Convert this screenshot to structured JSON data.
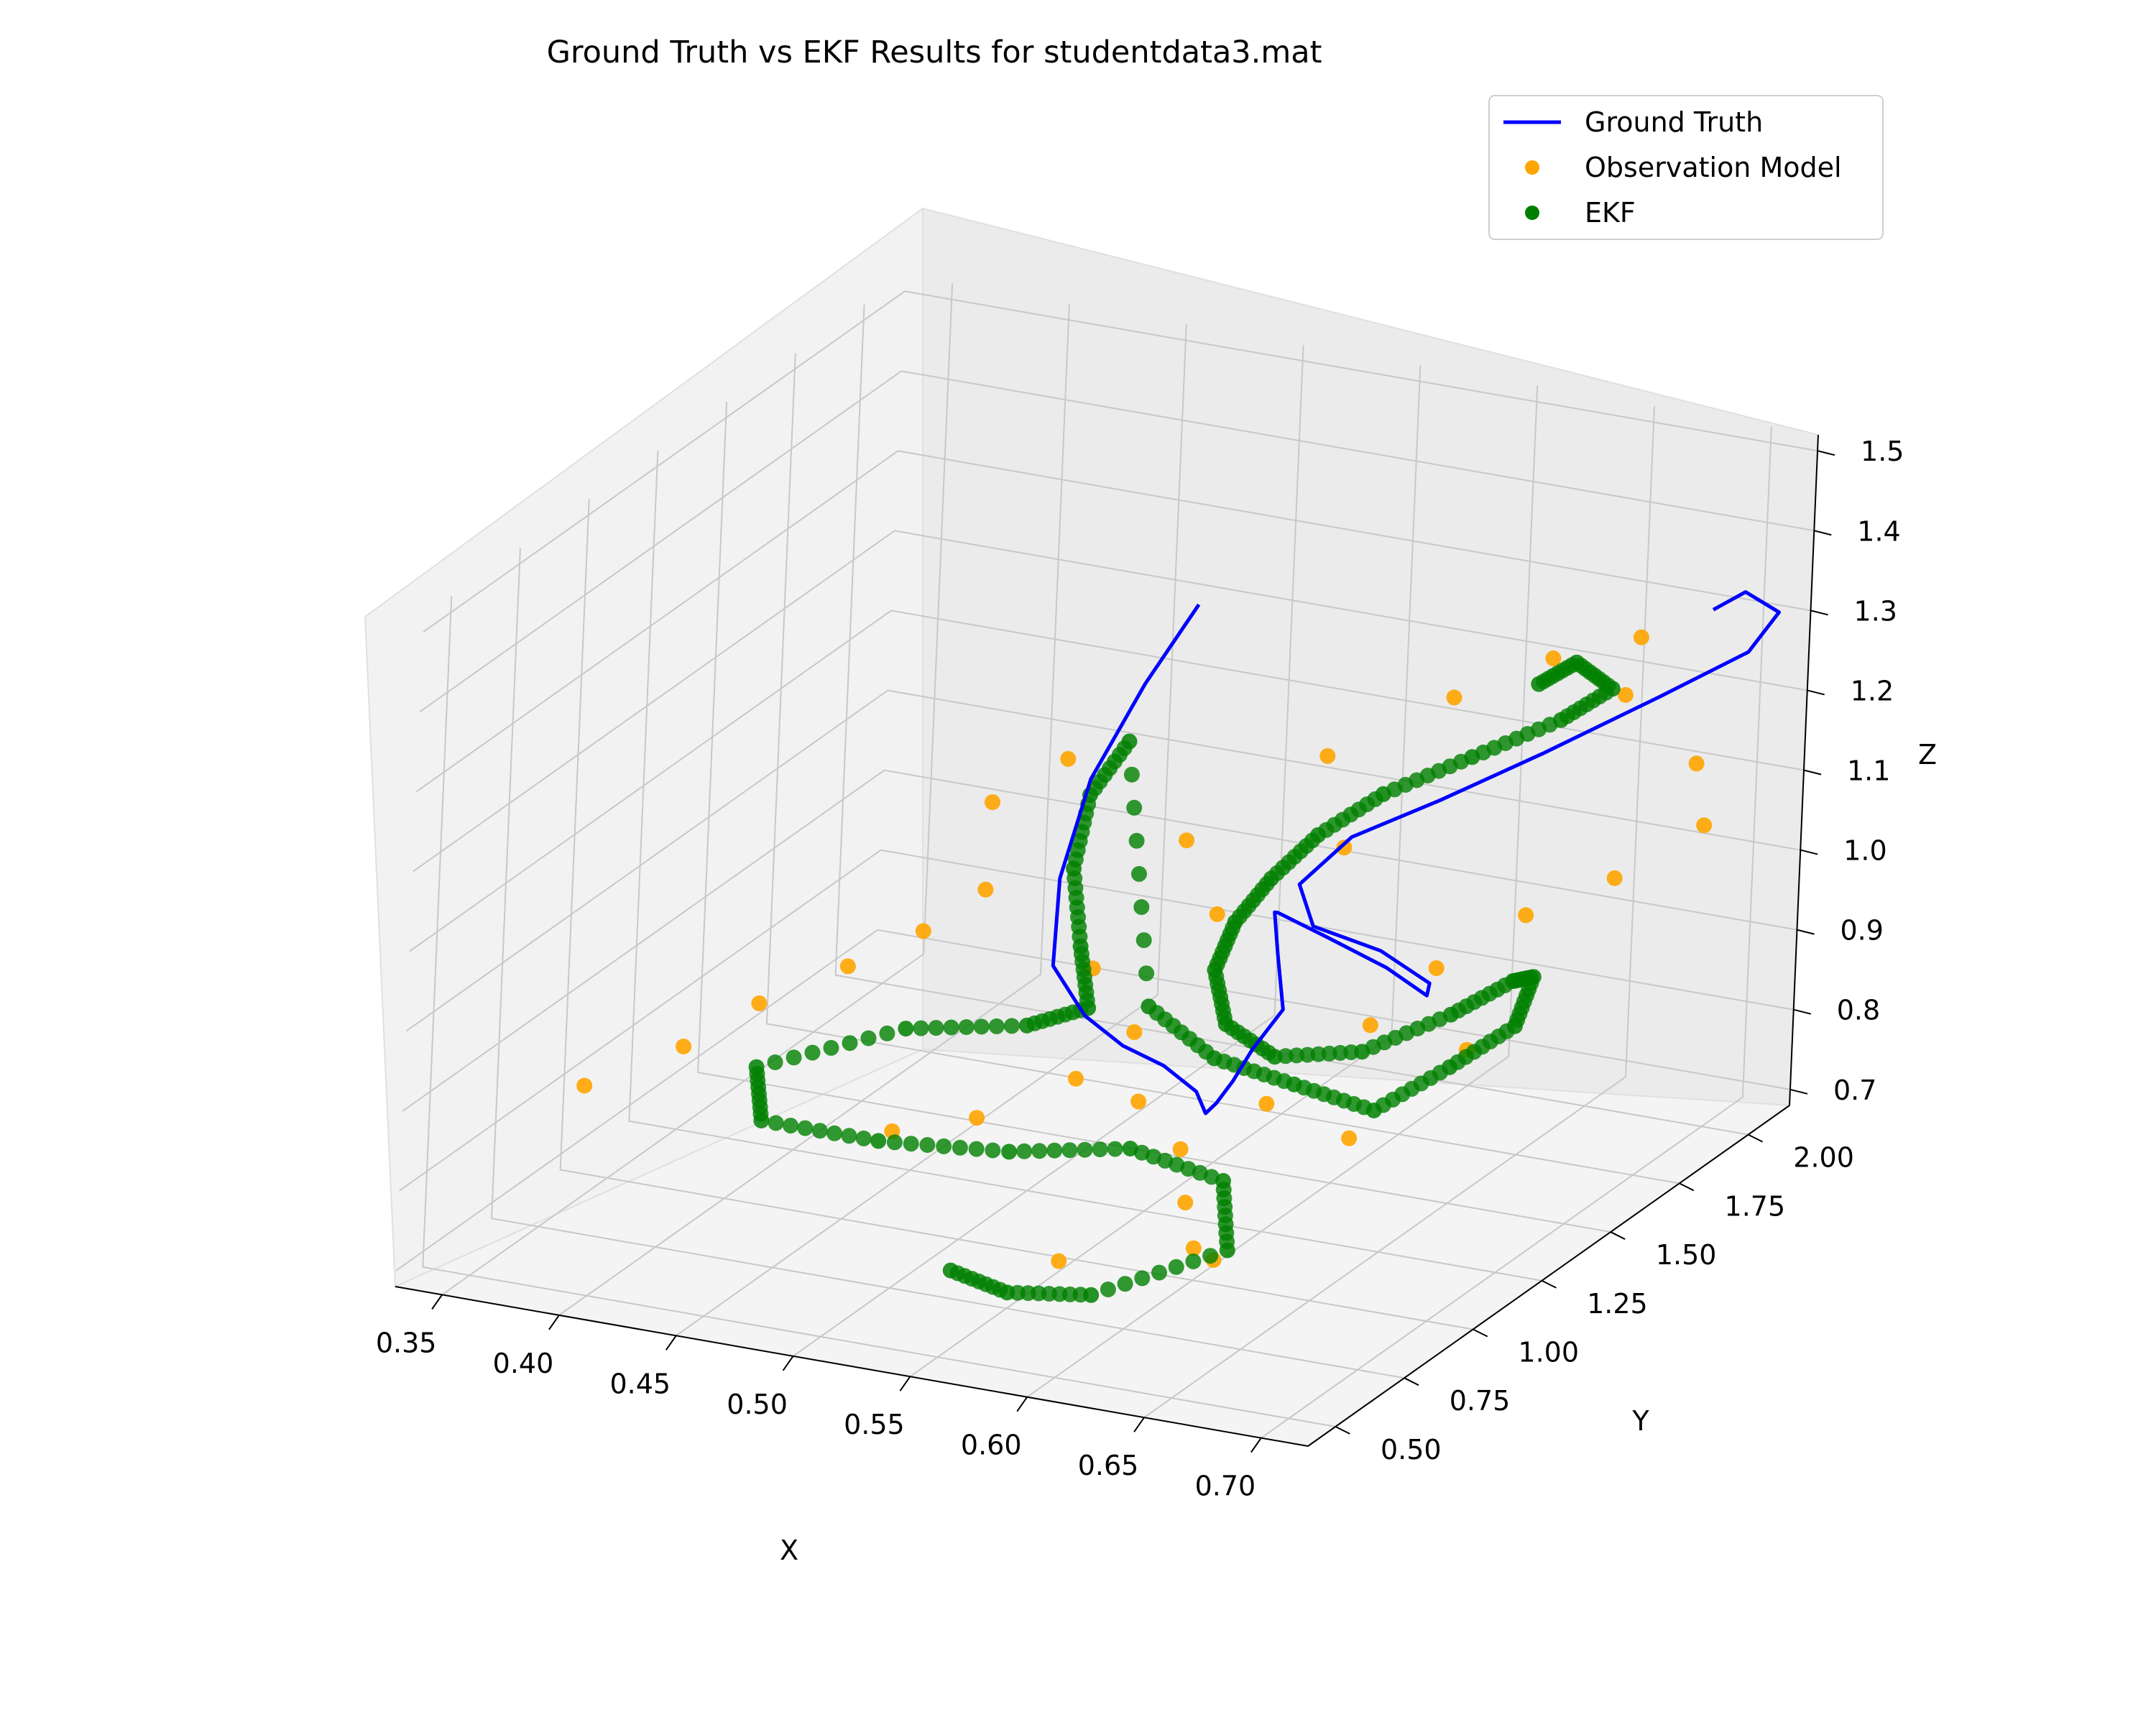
{
  "chart_data": {
    "type": "scatter",
    "title": "Ground Truth vs EKF Results for studentdata3.mat",
    "xlabel": "X",
    "ylabel": "Y",
    "zlabel": "Z",
    "grid": true,
    "legend_position": "top-right",
    "x_ticks": [
      "0.35",
      "0.40",
      "0.45",
      "0.50",
      "0.55",
      "0.60",
      "0.65",
      "0.70"
    ],
    "y_ticks": [
      "0.50",
      "0.75",
      "1.00",
      "1.25",
      "1.50",
      "1.75",
      "2.00"
    ],
    "z_ticks": [
      "0.7",
      "0.8",
      "0.9",
      "1.0",
      "1.1",
      "1.2",
      "1.3",
      "1.4",
      "1.5"
    ],
    "xlim": [
      0.33,
      0.72
    ],
    "ylim": [
      0.4,
      2.15
    ],
    "zlim": [
      0.68,
      1.52
    ],
    "colors": {
      "ground_truth": "#0000ff",
      "observation": "#ffa500",
      "ekf": "#008000"
    },
    "legend": [
      "Ground Truth",
      "Observation Model",
      "EKF"
    ],
    "series": [
      {
        "name": "Ground Truth",
        "kind": "line",
        "points": [
          [
            0.5,
            1.8,
            1.28
          ],
          [
            0.49,
            1.7,
            1.2
          ],
          [
            0.48,
            1.6,
            1.1
          ],
          [
            0.48,
            1.5,
            1.0
          ],
          [
            0.49,
            1.4,
            0.92
          ],
          [
            0.51,
            1.35,
            0.88
          ],
          [
            0.53,
            1.32,
            0.86
          ],
          [
            0.55,
            1.3,
            0.85
          ],
          [
            0.57,
            1.25,
            0.84
          ],
          [
            0.58,
            1.2,
            0.83
          ],
          [
            0.59,
            1.15,
            0.86
          ],
          [
            0.6,
            1.12,
            0.9
          ],
          [
            0.61,
            1.1,
            0.95
          ],
          [
            0.62,
            1.12,
            1.0
          ],
          [
            0.61,
            1.18,
            1.05
          ],
          [
            0.6,
            1.25,
            1.08
          ],
          [
            0.59,
            1.35,
            1.05
          ],
          [
            0.6,
            1.45,
            1.0
          ],
          [
            0.62,
            1.5,
            0.96
          ],
          [
            0.64,
            1.48,
            0.94
          ],
          [
            0.65,
            1.4,
            0.98
          ],
          [
            0.64,
            1.3,
            1.04
          ],
          [
            0.62,
            1.22,
            1.08
          ],
          [
            0.61,
            1.25,
            1.12
          ],
          [
            0.62,
            1.35,
            1.16
          ],
          [
            0.64,
            1.5,
            1.18
          ],
          [
            0.66,
            1.7,
            1.2
          ],
          [
            0.68,
            1.95,
            1.22
          ],
          [
            0.7,
            2.1,
            1.25
          ],
          [
            0.71,
            2.12,
            1.3
          ],
          [
            0.7,
            2.08,
            1.33
          ],
          [
            0.69,
            2.05,
            1.31
          ]
        ]
      },
      {
        "name": "EKF",
        "kind": "points",
        "points": [
          [
            0.52,
            0.8,
            0.7
          ],
          [
            0.55,
            0.75,
            0.7
          ],
          [
            0.58,
            0.8,
            0.7
          ],
          [
            0.62,
            0.95,
            0.74
          ],
          [
            0.6,
            1.1,
            0.78
          ],
          [
            0.56,
            1.1,
            0.8
          ],
          [
            0.52,
            1.0,
            0.8
          ],
          [
            0.47,
            0.95,
            0.8
          ],
          [
            0.42,
            0.95,
            0.8
          ],
          [
            0.4,
            1.1,
            0.82
          ],
          [
            0.44,
            1.3,
            0.84
          ],
          [
            0.48,
            1.4,
            0.84
          ],
          [
            0.5,
            1.45,
            0.86
          ],
          [
            0.49,
            1.5,
            0.92
          ],
          [
            0.48,
            1.55,
            1.0
          ],
          [
            0.48,
            1.6,
            1.08
          ],
          [
            0.49,
            1.65,
            1.14
          ],
          [
            0.52,
            1.5,
            0.86
          ],
          [
            0.56,
            1.4,
            0.84
          ],
          [
            0.6,
            1.35,
            0.84
          ],
          [
            0.64,
            1.3,
            0.84
          ],
          [
            0.66,
            1.4,
            0.88
          ],
          [
            0.67,
            1.55,
            0.9
          ],
          [
            0.66,
            1.7,
            0.92
          ],
          [
            0.64,
            1.8,
            0.88
          ],
          [
            0.62,
            1.75,
            0.84
          ],
          [
            0.6,
            1.6,
            0.82
          ],
          [
            0.58,
            1.45,
            0.84
          ],
          [
            0.57,
            1.35,
            0.9
          ],
          [
            0.57,
            1.3,
            0.98
          ],
          [
            0.58,
            1.28,
            1.05
          ],
          [
            0.59,
            1.32,
            1.1
          ],
          [
            0.6,
            1.4,
            1.14
          ],
          [
            0.61,
            1.55,
            1.16
          ],
          [
            0.63,
            1.7,
            1.18
          ],
          [
            0.65,
            1.85,
            1.2
          ],
          [
            0.66,
            1.95,
            1.22
          ],
          [
            0.65,
            1.9,
            1.26
          ],
          [
            0.64,
            1.85,
            1.24
          ]
        ]
      },
      {
        "name": "Observation Model",
        "kind": "points",
        "points": [
          [
            0.35,
            0.9,
            0.82
          ],
          [
            0.38,
            1.0,
            0.86
          ],
          [
            0.4,
            1.1,
            0.9
          ],
          [
            0.42,
            1.25,
            0.92
          ],
          [
            0.44,
            1.35,
            0.95
          ],
          [
            0.46,
            1.4,
            1.0
          ],
          [
            0.45,
            1.5,
            1.08
          ],
          [
            0.47,
            1.6,
            1.12
          ],
          [
            0.49,
            1.55,
            0.88
          ],
          [
            0.52,
            1.45,
            0.84
          ],
          [
            0.54,
            1.3,
            0.8
          ],
          [
            0.57,
            1.2,
            0.78
          ],
          [
            0.59,
            1.05,
            0.76
          ],
          [
            0.62,
            0.9,
            0.74
          ],
          [
            0.6,
            1.25,
            0.84
          ],
          [
            0.62,
            1.45,
            0.9
          ],
          [
            0.63,
            1.6,
            0.94
          ],
          [
            0.65,
            1.75,
            0.98
          ],
          [
            0.67,
            1.9,
            1.0
          ],
          [
            0.69,
            2.05,
            1.04
          ],
          [
            0.68,
            2.1,
            1.1
          ],
          [
            0.66,
            2.0,
            1.2
          ],
          [
            0.64,
            1.9,
            1.26
          ],
          [
            0.66,
            2.05,
            1.26
          ],
          [
            0.6,
            1.5,
            1.1
          ],
          [
            0.57,
            1.3,
            1.05
          ],
          [
            0.55,
            1.35,
            1.12
          ],
          [
            0.58,
            1.6,
            1.18
          ],
          [
            0.61,
            1.8,
            1.22
          ],
          [
            0.53,
            1.15,
            0.86
          ],
          [
            0.5,
            1.05,
            0.82
          ],
          [
            0.47,
            1.0,
            0.8
          ],
          [
            0.63,
            1.3,
            0.8
          ],
          [
            0.65,
            1.55,
            0.86
          ],
          [
            0.56,
            0.85,
            0.72
          ],
          [
            0.6,
            1.0,
            0.72
          ]
        ]
      }
    ]
  }
}
